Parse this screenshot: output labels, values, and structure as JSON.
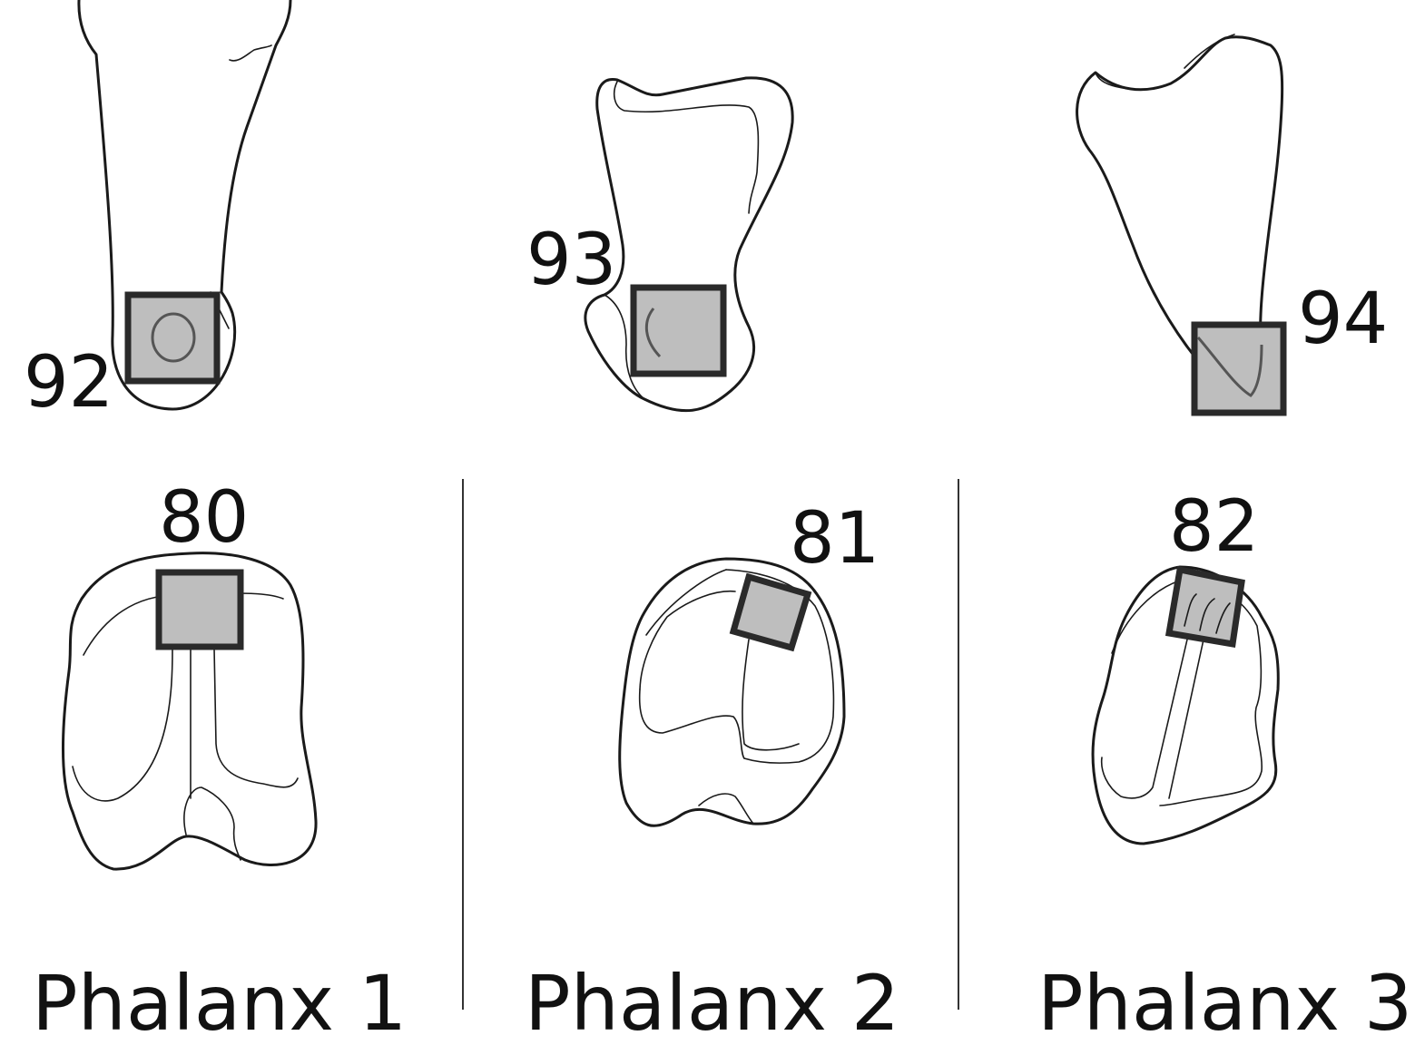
{
  "site_labels": {
    "s92": "92",
    "s93": "93",
    "s94": "94",
    "s80": "80",
    "s81": "81",
    "s82": "82"
  },
  "phalanges": [
    "Phalanx 1",
    "Phalanx 2",
    "Phalanx 3"
  ],
  "colors": {
    "outline": "#1a1a1a",
    "sample_box_fill": "#bebebe",
    "sample_box_border": "#2a2a2a"
  }
}
